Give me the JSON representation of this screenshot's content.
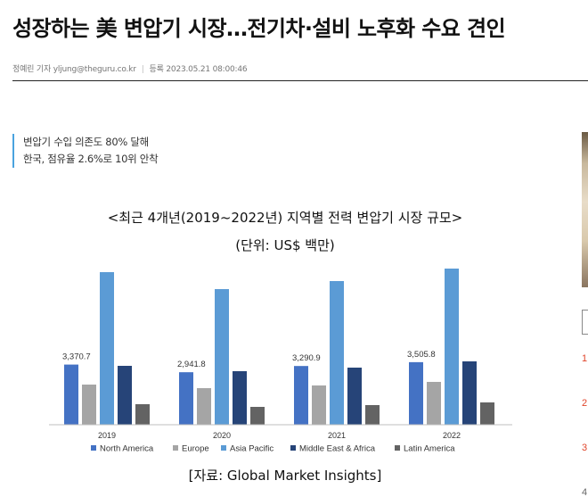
{
  "article": {
    "headline": "성장하는 美 변압기 시장…전기차·설비 노후화 수요 견인",
    "byline": "정예린 기자 yljung@theguru.co.kr",
    "date_label": "등록",
    "date": "2023.05.21 08:00:46",
    "summary": [
      "변압기 수입 의존도 80% 달해",
      "한국, 점유율 2.6%로 10위 안착"
    ]
  },
  "chart_data": {
    "type": "bar",
    "title": "<최근 4개년(2019~2022년) 지역별 전력 변압기 시장 규모>",
    "subtitle": "(단위: US$ 백만)",
    "source": "[자료: Global Market Insights]",
    "categories": [
      "2019",
      "2020",
      "2021",
      "2022"
    ],
    "series": [
      {
        "name": "North America",
        "color": "#4472c4",
        "values": [
          3370.7,
          2941.8,
          3290.9,
          3505.8
        ]
      },
      {
        "name": "Europe",
        "color": "#a5a5a5",
        "values": [
          2250,
          2050,
          2200,
          2400
        ]
      },
      {
        "name": "Asia Pacific",
        "color": "#5b9bd5",
        "values": [
          8550,
          7600,
          8050,
          8750
        ]
      },
      {
        "name": "Middle East & Africa",
        "color": "#264478",
        "values": [
          3300,
          3000,
          3200,
          3550
        ]
      },
      {
        "name": "Latin America",
        "color": "#636363",
        "values": [
          1150,
          1000,
          1100,
          1250
        ]
      }
    ],
    "data_labels": [
      "3,370.7",
      "2,941.8",
      "3,290.9",
      "3,505.8"
    ],
    "ylim": [
      0,
      9000
    ],
    "grid": false,
    "legend_position": "bottom"
  },
  "sidebar": {
    "ranks": [
      "1",
      "2",
      "3",
      "4"
    ]
  }
}
